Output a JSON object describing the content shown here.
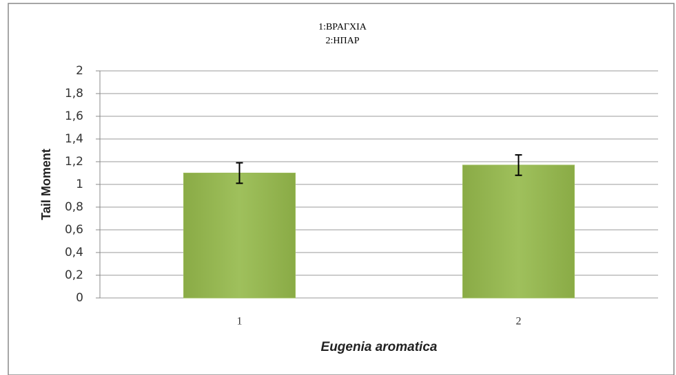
{
  "chart_data": {
    "type": "bar",
    "title": [
      "1:ΒΡΑΓΧΙΑ",
      "2:ΗΠΑΡ"
    ],
    "ylabel": "Tail Moment",
    "xlabel": "Eugenia aromatica",
    "categories": [
      "1",
      "2"
    ],
    "values": [
      1.1,
      1.17
    ],
    "errors": [
      0.09,
      0.09
    ],
    "color": "#9bbb59",
    "ylim": [
      0,
      2
    ],
    "yticks": [
      0,
      {
        "value": 0.2,
        "label": "0,2"
      },
      {
        "value": 0.4,
        "label": "0,4"
      },
      {
        "value": 0.6,
        "label": "0,6"
      },
      {
        "value": 0.8,
        "label": "0,8"
      },
      1,
      {
        "value": 1.2,
        "label": "1,2"
      },
      {
        "value": 1.4,
        "label": "1,4"
      },
      {
        "value": 1.6,
        "label": "1,6"
      },
      {
        "value": 1.8,
        "label": "1,8"
      },
      2
    ],
    "grid": true
  }
}
